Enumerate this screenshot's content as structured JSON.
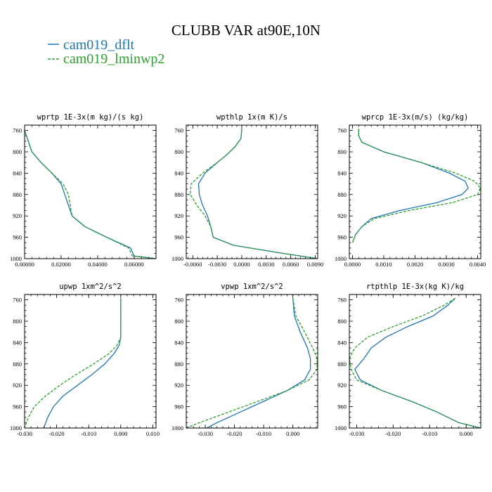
{
  "title": "CLUBB VAR at90E,10N",
  "legend": [
    {
      "label": "cam019_dflt",
      "color": "#1f77b4",
      "dash": "solid"
    },
    {
      "label": "cam019_lminwp2",
      "color": "#2ca02c",
      "dash": "dashed"
    }
  ],
  "chart_data": [
    {
      "type": "line",
      "title": "wprtp  1E-3x(m kg)/(s kg)",
      "xlim": [
        0.0,
        0.072
      ],
      "ylim": [
        1000,
        750
      ],
      "xticks": [
        0.0,
        0.02,
        0.04,
        0.06
      ],
      "xticklabels": [
        "0.00000",
        "0.02000",
        "0.04000",
        "0.06000"
      ],
      "yticks": [
        760,
        800,
        840,
        880,
        920,
        960,
        1000
      ],
      "yticklabels": [
        "760",
        "800",
        "840",
        "880",
        "920",
        "960",
        "1000"
      ],
      "series": [
        {
          "name": "cam019_dflt",
          "y": [
            760,
            780,
            800,
            820,
            840,
            860,
            880,
            900,
            920,
            940,
            960,
            980,
            995,
            1000
          ],
          "x": [
            0.0,
            0.002,
            0.004,
            0.009,
            0.015,
            0.02,
            0.022,
            0.024,
            0.026,
            0.033,
            0.045,
            0.058,
            0.06,
            0.072
          ]
        },
        {
          "name": "cam019_lminwp2",
          "y": [
            760,
            780,
            800,
            820,
            840,
            860,
            880,
            900,
            920,
            940,
            960,
            980,
            995,
            1000
          ],
          "x": [
            0.0,
            0.002,
            0.004,
            0.009,
            0.015,
            0.021,
            0.024,
            0.025,
            0.026,
            0.033,
            0.045,
            0.057,
            0.059,
            0.072
          ]
        }
      ]
    },
    {
      "type": "line",
      "title": "wpthlp  1x(m K)/s",
      "xlim": [
        -0.0068,
        0.0093
      ],
      "ylim": [
        1000,
        750
      ],
      "xticks": [
        -0.006,
        -0.003,
        0.0,
        0.003,
        0.006,
        0.009
      ],
      "xticklabels": [
        "-0.0060",
        "-0.0030",
        "0.0000",
        "0.0030",
        "0.0060",
        "0.0090"
      ],
      "yticks": [
        760,
        800,
        840,
        880,
        920,
        960,
        1000
      ],
      "yticklabels": [
        "760",
        "800",
        "840",
        "880",
        "920",
        "960",
        "1000"
      ],
      "series": [
        {
          "name": "cam019_dflt",
          "y": [
            757,
            775,
            790,
            805,
            820,
            840,
            860,
            880,
            900,
            920,
            940,
            960,
            975,
            990,
            1000
          ],
          "x": [
            0.0,
            -0.0001,
            -0.0008,
            -0.0018,
            -0.003,
            -0.0045,
            -0.0053,
            -0.0052,
            -0.0048,
            -0.0042,
            -0.0038,
            -0.0035,
            -0.001,
            0.005,
            0.0093
          ]
        },
        {
          "name": "cam019_lminwp2",
          "y": [
            757,
            775,
            790,
            805,
            820,
            840,
            860,
            880,
            900,
            920,
            940,
            960,
            975,
            990,
            1000
          ],
          "x": [
            0.0,
            -0.0001,
            -0.0008,
            -0.0018,
            -0.003,
            -0.0048,
            -0.0062,
            -0.0063,
            -0.0055,
            -0.0045,
            -0.0038,
            -0.0035,
            -0.001,
            0.005,
            0.0093
          ]
        }
      ]
    },
    {
      "type": "line",
      "title": "wprcp  1E-3x(m/s) (kg/kg)",
      "xlim": [
        -0.0001,
        0.0041
      ],
      "ylim": [
        1000,
        750
      ],
      "xticks": [
        0.0,
        0.001,
        0.002,
        0.003,
        0.004
      ],
      "xticklabels": [
        "0.0000",
        "0.0010",
        "0.0020",
        "0.0030",
        "0.0040"
      ],
      "yticks": [
        760,
        800,
        840,
        880,
        920,
        960,
        1000
      ],
      "yticklabels": [
        "760",
        "800",
        "840",
        "880",
        "920",
        "960",
        "1000"
      ],
      "series": [
        {
          "name": "cam019_dflt",
          "y": [
            757,
            770,
            782,
            800,
            820,
            840,
            855,
            868,
            880,
            895,
            910,
            925,
            940,
            955,
            970
          ],
          "x": [
            0.0002,
            0.0002,
            0.0003,
            0.001,
            0.0022,
            0.0031,
            0.0036,
            0.0037,
            0.0035,
            0.0027,
            0.0015,
            0.0006,
            0.0003,
            0.0001,
            0.0
          ]
        },
        {
          "name": "cam019_lminwp2",
          "y": [
            757,
            770,
            782,
            800,
            820,
            840,
            855,
            868,
            880,
            895,
            910,
            925,
            940,
            955,
            970
          ],
          "x": [
            0.0002,
            0.0002,
            0.0003,
            0.001,
            0.0022,
            0.0033,
            0.0039,
            0.0041,
            0.004,
            0.0032,
            0.0018,
            0.0007,
            0.0003,
            0.0001,
            0.0
          ]
        }
      ]
    },
    {
      "type": "line",
      "title": "upwp  1xm^2/s^2",
      "xlim": [
        -0.03,
        0.011
      ],
      "ylim": [
        1000,
        750
      ],
      "xticks": [
        -0.03,
        -0.02,
        -0.01,
        0.0,
        0.01
      ],
      "xticklabels": [
        "-0.030",
        "-0.020",
        "-0.010",
        "0.000",
        "0.010"
      ],
      "yticks": [
        760,
        800,
        840,
        880,
        920,
        960,
        1000
      ],
      "yticklabels": [
        "760",
        "800",
        "840",
        "880",
        "920",
        "960",
        "1000"
      ],
      "series": [
        {
          "name": "cam019_dflt",
          "y": [
            757,
            800,
            830,
            845,
            860,
            880,
            900,
            920,
            940,
            960,
            980,
            1000
          ],
          "x": [
            0.0,
            0.0,
            0.0,
            -0.0005,
            -0.002,
            -0.005,
            -0.009,
            -0.0135,
            -0.018,
            -0.021,
            -0.0228,
            -0.024
          ]
        },
        {
          "name": "cam019_lminwp2",
          "y": [
            757,
            800,
            830,
            845,
            860,
            880,
            900,
            920,
            940,
            960,
            980,
            1000
          ],
          "x": [
            0.0,
            0.0,
            0.0,
            -0.0012,
            -0.0035,
            -0.0085,
            -0.014,
            -0.019,
            -0.0235,
            -0.027,
            -0.0288,
            -0.03
          ]
        }
      ]
    },
    {
      "type": "line",
      "title": "vpwp  1xm^2/s^2",
      "xlim": [
        -0.0365,
        0.0085
      ],
      "ylim": [
        1000,
        750
      ],
      "xticks": [
        -0.03,
        -0.02,
        -0.01,
        0.0
      ],
      "xticklabels": [
        "-0.030",
        "-0.020",
        "-0.010",
        "0.000"
      ],
      "yticks": [
        760,
        800,
        840,
        880,
        920,
        960,
        1000
      ],
      "yticklabels": [
        "760",
        "800",
        "840",
        "880",
        "920",
        "960",
        "1000"
      ],
      "series": [
        {
          "name": "cam019_dflt",
          "y": [
            757,
            790,
            820,
            850,
            870,
            890,
            910,
            930,
            950,
            970,
            990,
            1000
          ],
          "x": [
            0.0,
            0.0005,
            0.0025,
            0.005,
            0.006,
            0.006,
            0.004,
            -0.002,
            -0.01,
            -0.018,
            -0.026,
            -0.0295
          ]
        },
        {
          "name": "cam019_lminwp2",
          "y": [
            757,
            790,
            820,
            850,
            870,
            890,
            910,
            930,
            950,
            970,
            990,
            1000
          ],
          "x": [
            0.0,
            0.001,
            0.004,
            0.0068,
            0.0083,
            0.0083,
            0.0055,
            -0.002,
            -0.012,
            -0.022,
            -0.032,
            -0.0365
          ]
        }
      ]
    },
    {
      "type": "line",
      "title": "rtpthlp  1E-3x(kg K)/kg",
      "xlim": [
        -0.032,
        0.004
      ],
      "ylim": [
        1000,
        750
      ],
      "xticks": [
        -0.03,
        -0.02,
        -0.01,
        0.0
      ],
      "xticklabels": [
        "-0.030",
        "-0.020",
        "-0.010",
        "0.000"
      ],
      "yticks": [
        760,
        800,
        840,
        880,
        920,
        960,
        1000
      ],
      "yticklabels": [
        "760",
        "800",
        "840",
        "880",
        "920",
        "960",
        "1000"
      ],
      "series": [
        {
          "name": "cam019_dflt",
          "y": [
            757,
            770,
            790,
            810,
            830,
            850,
            870,
            890,
            910,
            930,
            950,
            970,
            990,
            1000
          ],
          "x": [
            -0.003,
            -0.005,
            -0.009,
            -0.016,
            -0.022,
            -0.026,
            -0.028,
            -0.0305,
            -0.029,
            -0.023,
            -0.015,
            -0.008,
            -0.002,
            0.004
          ]
        },
        {
          "name": "cam019_lminwp2",
          "y": [
            757,
            770,
            790,
            810,
            830,
            850,
            870,
            890,
            910,
            930,
            950,
            970,
            990,
            1000
          ],
          "x": [
            -0.003,
            -0.006,
            -0.012,
            -0.02,
            -0.027,
            -0.0305,
            -0.032,
            -0.0315,
            -0.03,
            -0.023,
            -0.015,
            -0.008,
            -0.002,
            0.004
          ]
        }
      ]
    }
  ]
}
